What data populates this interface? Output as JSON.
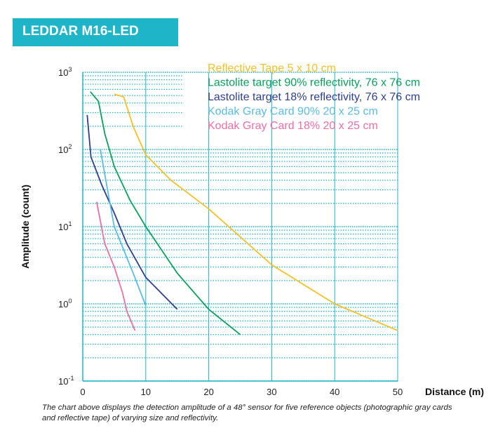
{
  "banner": {
    "title": "LEDDAR M16-LED"
  },
  "caption": "The chart above displays the detection amplitude of a 48° sensor for five reference objects (photographic gray cards and reflective tape) of varying size and reflectivity.",
  "colors": {
    "banner": "#1fb5c9",
    "grid": "#1fb5c9"
  },
  "chart_data": {
    "type": "line",
    "title": "",
    "xlabel": "Distance (m)",
    "ylabel": "Amplitude (count)",
    "xlim": [
      0,
      50
    ],
    "ylim": [
      0.1,
      1000
    ],
    "yscale": "log",
    "grid": true,
    "legend_position": "top-right",
    "x_ticks": [
      "0",
      "10",
      "20",
      "30",
      "40",
      "50"
    ],
    "y_ticks": [
      {
        "base": "10",
        "exp": "-1",
        "value": 0.1
      },
      {
        "base": "10",
        "exp": "0",
        "value": 1
      },
      {
        "base": "10",
        "exp": "1",
        "value": 10
      },
      {
        "base": "10",
        "exp": "2",
        "value": 100
      },
      {
        "base": "10",
        "exp": "3",
        "value": 1000
      }
    ],
    "series": [
      {
        "name": "Reflective Tape 5 x 10 cm",
        "color": "#f5c028",
        "points": [
          [
            5,
            520
          ],
          [
            6.5,
            480
          ],
          [
            8,
            200
          ],
          [
            10,
            85
          ],
          [
            14,
            40
          ],
          [
            20,
            17
          ],
          [
            30,
            3.2
          ],
          [
            40,
            1.0
          ],
          [
            50,
            0.45
          ]
        ]
      },
      {
        "name": "Lastolite target 90% reflectivity, 76 x 76 cm",
        "color": "#0aa05a",
        "points": [
          [
            1.2,
            560
          ],
          [
            2.5,
            420
          ],
          [
            3.5,
            160
          ],
          [
            5,
            60
          ],
          [
            7.5,
            22
          ],
          [
            10,
            10
          ],
          [
            15,
            2.5
          ],
          [
            20,
            0.85
          ],
          [
            25,
            0.4
          ]
        ]
      },
      {
        "name": "Lastolite target 18% reflectivity, 76 x 76 cm",
        "color": "#2e3f8f",
        "points": [
          [
            0.7,
            280
          ],
          [
            1.3,
            80
          ],
          [
            3,
            35
          ],
          [
            5,
            15
          ],
          [
            7,
            6
          ],
          [
            10,
            2.2
          ],
          [
            15,
            0.85
          ]
        ]
      },
      {
        "name": "Kodak Gray Card 90% 20 x 25 cm",
        "color": "#5bbbe3",
        "points": [
          [
            2.8,
            100
          ],
          [
            4,
            28
          ],
          [
            5,
            10
          ],
          [
            6.5,
            5
          ],
          [
            8,
            2.5
          ],
          [
            10,
            0.95
          ]
        ]
      },
      {
        "name": "Kodak Gray Card 18% 20 x 25 cm",
        "color": "#ef6fa5",
        "points": [
          [
            2.2,
            21
          ],
          [
            3.5,
            6
          ],
          [
            5,
            3
          ],
          [
            6.3,
            1.4
          ],
          [
            7,
            0.8
          ],
          [
            8.3,
            0.45
          ]
        ]
      }
    ]
  }
}
